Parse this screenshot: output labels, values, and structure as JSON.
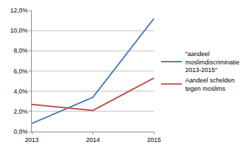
{
  "chart_data": {
    "type": "line",
    "categories": [
      "2013",
      "2014",
      "2015"
    ],
    "series": [
      {
        "name": "\"aandeel moslimdiscriminatie 2013-2015\"",
        "color": "#4a7ebb",
        "values": [
          0.8,
          3.4,
          11.2
        ]
      },
      {
        "name": "Aandeel schelden tegen moslims",
        "color": "#be4b48",
        "values": [
          2.7,
          2.1,
          5.3
        ]
      }
    ],
    "ylim": [
      0,
      12
    ],
    "yticks": [
      {
        "value": 0,
        "label": "0,0%"
      },
      {
        "value": 2,
        "label": "2,0%"
      },
      {
        "value": 4,
        "label": "4,0%"
      },
      {
        "value": 6,
        "label": "6,0%"
      },
      {
        "value": 8,
        "label": "8,0%"
      },
      {
        "value": 10,
        "label": "10,0%"
      },
      {
        "value": 12,
        "label": "12,0%"
      }
    ],
    "grid": true,
    "legend": "right"
  }
}
